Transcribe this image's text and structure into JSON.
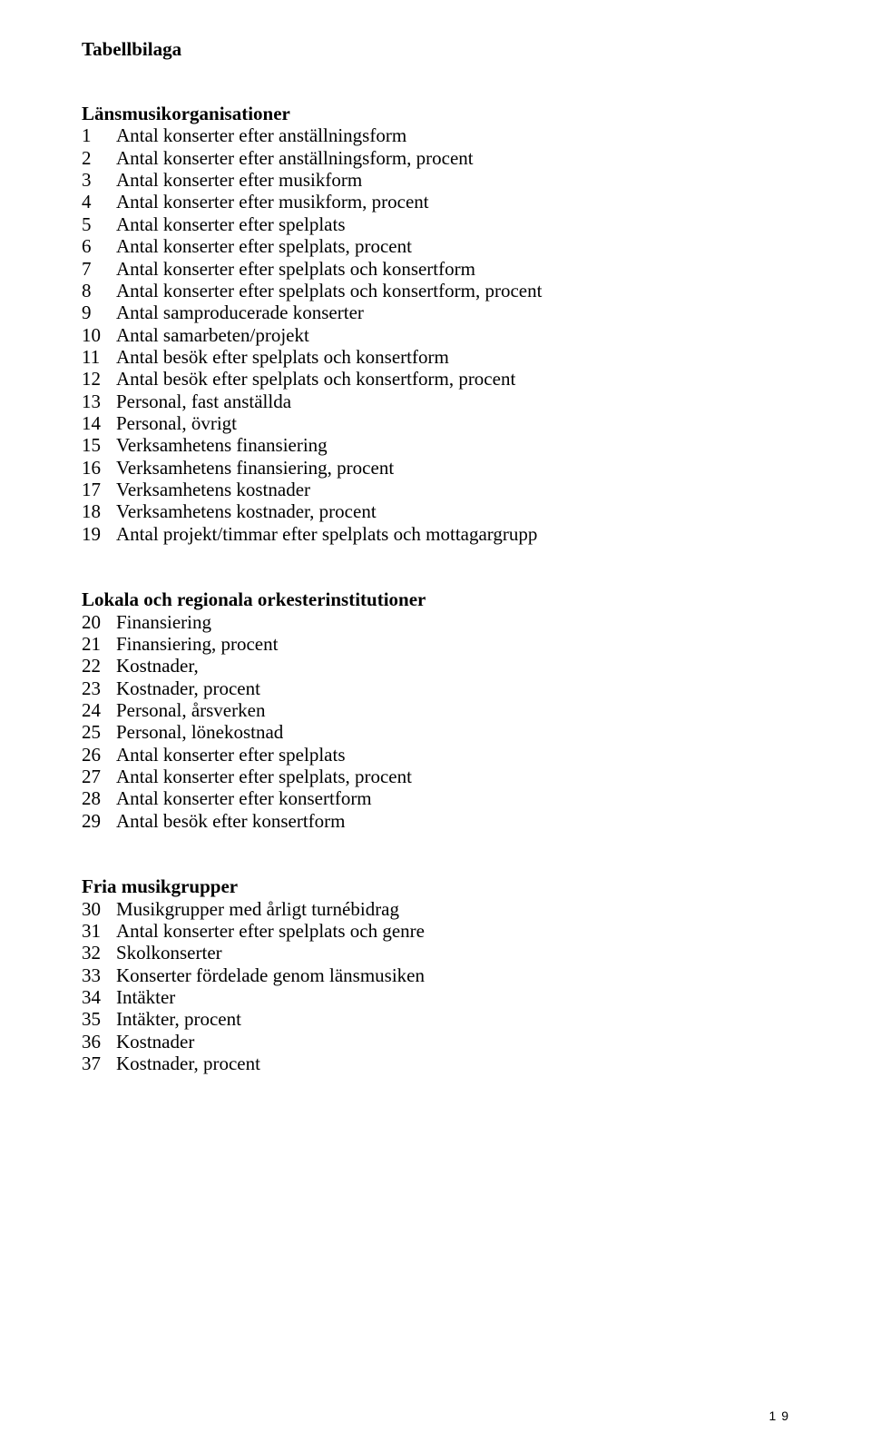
{
  "pageTitle": "Tabellbilaga",
  "sections": [
    {
      "heading": "Länsmusikorganisationer",
      "items": [
        {
          "n": "1",
          "t": "Antal konserter efter anställningsform"
        },
        {
          "n": "2",
          "t": "Antal konserter efter anställningsform, procent"
        },
        {
          "n": "3",
          "t": "Antal konserter efter musikform"
        },
        {
          "n": "4",
          "t": "Antal konserter efter musikform, procent"
        },
        {
          "n": "5",
          "t": "Antal konserter efter spelplats"
        },
        {
          "n": "6",
          "t": "Antal konserter efter spelplats, procent"
        },
        {
          "n": "7",
          "t": "Antal konserter efter spelplats och konsertform"
        },
        {
          "n": "8",
          "t": "Antal konserter efter spelplats och konsertform, procent"
        },
        {
          "n": "9",
          "t": "Antal samproducerade konserter"
        },
        {
          "n": "10",
          "t": "Antal samarbeten/projekt"
        },
        {
          "n": "11",
          "t": "Antal besök efter spelplats och konsertform"
        },
        {
          "n": "12",
          "t": "Antal besök efter spelplats och konsertform, procent"
        },
        {
          "n": "13",
          "t": "Personal, fast anställda"
        },
        {
          "n": "14",
          "t": "Personal, övrigt"
        },
        {
          "n": "15",
          "t": "Verksamhetens finansiering"
        },
        {
          "n": "16",
          "t": "Verksamhetens finansiering, procent"
        },
        {
          "n": "17",
          "t": "Verksamhetens kostnader"
        },
        {
          "n": "18",
          "t": "Verksamhetens kostnader, procent"
        },
        {
          "n": "19",
          "t": "Antal projekt/timmar efter spelplats och mottagargrupp"
        }
      ]
    },
    {
      "heading": "Lokala och regionala orkesterinstitutioner",
      "items": [
        {
          "n": "20",
          "t": "Finansiering"
        },
        {
          "n": "21",
          "t": "Finansiering, procent"
        },
        {
          "n": "22",
          "t": "Kostnader,"
        },
        {
          "n": "23",
          "t": "Kostnader, procent"
        },
        {
          "n": "24",
          "t": "Personal, årsverken"
        },
        {
          "n": "25",
          "t": "Personal, lönekostnad"
        },
        {
          "n": "26",
          "t": "Antal konserter efter spelplats"
        },
        {
          "n": "27",
          "t": "Antal konserter efter spelplats, procent"
        },
        {
          "n": "28",
          "t": "Antal konserter efter konsertform"
        },
        {
          "n": "29",
          "t": "Antal besök efter konsertform"
        }
      ]
    },
    {
      "heading": "Fria musikgrupper",
      "items": [
        {
          "n": "30",
          "t": "Musikgrupper med årligt turnébidrag"
        },
        {
          "n": "31",
          "t": "Antal konserter efter spelplats och genre"
        },
        {
          "n": "32",
          "t": "Skolkonserter"
        },
        {
          "n": "33",
          "t": "Konserter fördelade genom länsmusiken"
        },
        {
          "n": "34",
          "t": "Intäkter"
        },
        {
          "n": "35",
          "t": "Intäkter, procent"
        },
        {
          "n": "36",
          "t": "Kostnader"
        },
        {
          "n": "37",
          "t": "Kostnader, procent"
        }
      ]
    }
  ],
  "pageNumber": "1 9"
}
